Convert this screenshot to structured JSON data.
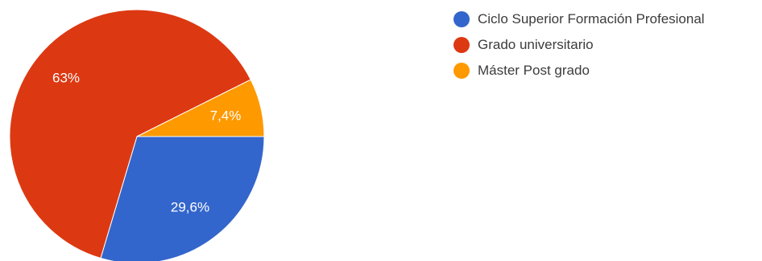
{
  "chart_data": {
    "type": "pie",
    "title": "",
    "slices": [
      {
        "label": "Ciclo Superior Formación Profesional",
        "value": 29.6,
        "value_label": "29,6%",
        "color": "#3366cc"
      },
      {
        "label": "Grado universitario",
        "value": 63,
        "value_label": "63%",
        "color": "#dc3912"
      },
      {
        "label": "Máster Post grado",
        "value": 7.4,
        "value_label": "7,4%",
        "color": "#ff9900"
      }
    ],
    "legend_placement": "right"
  }
}
